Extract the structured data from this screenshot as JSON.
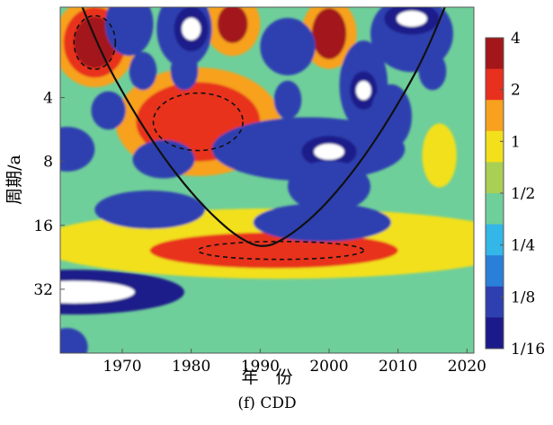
{
  "chart_data": {
    "type": "heatmap",
    "subtitle": "(f) CDD",
    "xlabel": "年　份",
    "ylabel": "周期/a",
    "xlim": [
      1961,
      2021
    ],
    "ylim": [
      1.5,
      64
    ],
    "y_scale": "log2",
    "y_reversed": true,
    "x_ticks": [
      {
        "value": 1970,
        "label": "1970"
      },
      {
        "value": 1980,
        "label": "1980"
      },
      {
        "value": 1990,
        "label": "1990"
      },
      {
        "value": 2000,
        "label": "2000"
      },
      {
        "value": 2010,
        "label": "2010"
      },
      {
        "value": 2020,
        "label": "2020"
      }
    ],
    "y_ticks": [
      {
        "value": 4,
        "label": "4"
      },
      {
        "value": 8,
        "label": "8"
      },
      {
        "value": 16,
        "label": "16"
      },
      {
        "value": 32,
        "label": "32"
      }
    ],
    "colorbar": {
      "scale": "log2",
      "range": [
        0.0625,
        4
      ],
      "ticks": [
        {
          "value": 4,
          "label": "4"
        },
        {
          "value": 2,
          "label": "2"
        },
        {
          "value": 1,
          "label": "1"
        },
        {
          "value": 0.5,
          "label": "1/2"
        },
        {
          "value": 0.25,
          "label": "1/4"
        },
        {
          "value": 0.125,
          "label": "1/8"
        },
        {
          "value": 0.0625,
          "label": "1/16"
        }
      ],
      "colors": [
        "#1c1a8a",
        "#2e3fb0",
        "#2a7fd8",
        "#33b6e8",
        "#6fcf9a",
        "#a9cf55",
        "#f2e01c",
        "#f7a11e",
        "#e8301e",
        "#a3161a"
      ]
    },
    "background_level": 0.4,
    "features": [
      {
        "x": 1966,
        "y": 2.2,
        "rx": 6,
        "ry": 0.7,
        "level": 1.5
      },
      {
        "x": 1966,
        "y": 2.2,
        "rx": 4.5,
        "ry": 0.55,
        "level": 2.6
      },
      {
        "x": 1966,
        "y": 2.2,
        "rx": 3,
        "ry": 0.4,
        "level": 4
      },
      {
        "x": 1986,
        "y": 1.8,
        "rx": 4,
        "ry": 0.5,
        "level": 1.5
      },
      {
        "x": 1986,
        "y": 1.8,
        "rx": 2.2,
        "ry": 0.3,
        "level": 3
      },
      {
        "x": 2000,
        "y": 2.0,
        "rx": 4,
        "ry": 0.55,
        "level": 1.5
      },
      {
        "x": 2000,
        "y": 2.0,
        "rx": 2.5,
        "ry": 0.4,
        "level": 3
      },
      {
        "x": 1981,
        "y": 5.2,
        "rx": 12,
        "ry": 0.85,
        "level": 1.2
      },
      {
        "x": 1981,
        "y": 5.2,
        "rx": 9,
        "ry": 0.62,
        "level": 2.6
      },
      {
        "x": 2016,
        "y": 7.5,
        "rx": 2.5,
        "ry": 0.5,
        "level": 1.1
      },
      {
        "x": 1993,
        "y": 19.5,
        "rx": 36,
        "ry": 0.55,
        "level": 1.1
      },
      {
        "x": 1992,
        "y": 21,
        "rx": 18,
        "ry": 0.28,
        "level": 2.4
      },
      {
        "x": 1971,
        "y": 1.8,
        "rx": 3.5,
        "ry": 0.5,
        "level": 0.12
      },
      {
        "x": 1979,
        "y": 1.9,
        "rx": 4,
        "ry": 0.6,
        "level": 0.1
      },
      {
        "x": 1980,
        "y": 1.9,
        "rx": 2.5,
        "ry": 0.35,
        "level": 0.0625
      },
      {
        "x": 1994,
        "y": 2.3,
        "rx": 4,
        "ry": 0.45,
        "level": 0.1
      },
      {
        "x": 2012,
        "y": 2.0,
        "rx": 6,
        "ry": 0.6,
        "level": 0.12
      },
      {
        "x": 2012,
        "y": 1.7,
        "rx": 4,
        "ry": 0.25,
        "level": 0.0625
      },
      {
        "x": 1973,
        "y": 3.0,
        "rx": 2,
        "ry": 0.3,
        "level": 0.1
      },
      {
        "x": 1979,
        "y": 3.0,
        "rx": 2,
        "ry": 0.3,
        "level": 0.1
      },
      {
        "x": 2005,
        "y": 3.5,
        "rx": 3.5,
        "ry": 0.7,
        "level": 0.1
      },
      {
        "x": 2005,
        "y": 3.7,
        "rx": 2,
        "ry": 0.3,
        "level": 0.0625
      },
      {
        "x": 2015,
        "y": 3.0,
        "rx": 2,
        "ry": 0.3,
        "level": 0.1
      },
      {
        "x": 1968,
        "y": 4.6,
        "rx": 2.5,
        "ry": 0.3,
        "level": 0.1
      },
      {
        "x": 1994,
        "y": 4.1,
        "rx": 2,
        "ry": 0.3,
        "level": 0.1
      },
      {
        "x": 2009,
        "y": 4.9,
        "rx": 3,
        "ry": 0.5,
        "level": 0.1
      },
      {
        "x": 1997,
        "y": 7.0,
        "rx": 14,
        "ry": 0.5,
        "level": 0.12
      },
      {
        "x": 2000,
        "y": 7.2,
        "rx": 4,
        "ry": 0.25,
        "level": 0.0625
      },
      {
        "x": 1962,
        "y": 7.0,
        "rx": 4,
        "ry": 0.35,
        "level": 0.12
      },
      {
        "x": 1976,
        "y": 7.8,
        "rx": 4.5,
        "ry": 0.3,
        "level": 0.1
      },
      {
        "x": 2000,
        "y": 10.5,
        "rx": 6,
        "ry": 0.4,
        "level": 0.1
      },
      {
        "x": 1974,
        "y": 13.5,
        "rx": 8,
        "ry": 0.3,
        "level": 0.1
      },
      {
        "x": 1999,
        "y": 15.5,
        "rx": 10,
        "ry": 0.3,
        "level": 0.1
      },
      {
        "x": 1963,
        "y": 33,
        "rx": 16,
        "ry": 0.35,
        "level": 0.0625
      },
      {
        "x": 1962,
        "y": 60,
        "rx": 3,
        "ry": 0.3,
        "level": 0.1
      }
    ],
    "coi_curve": [
      {
        "x": 1963,
        "y": 1.2
      },
      {
        "x": 1967,
        "y": 2.5
      },
      {
        "x": 1971,
        "y": 4.3
      },
      {
        "x": 1975,
        "y": 6.9
      },
      {
        "x": 1979,
        "y": 10.3
      },
      {
        "x": 1983,
        "y": 14.3
      },
      {
        "x": 1987,
        "y": 18.5
      },
      {
        "x": 1990.5,
        "y": 20.6
      },
      {
        "x": 1994,
        "y": 18.2
      },
      {
        "x": 1998,
        "y": 14.3
      },
      {
        "x": 2002,
        "y": 10.3
      },
      {
        "x": 2006,
        "y": 6.9
      },
      {
        "x": 2010,
        "y": 4.3
      },
      {
        "x": 2014,
        "y": 2.5
      },
      {
        "x": 2018,
        "y": 1.2
      }
    ],
    "significance_contours": [
      {
        "x": 1966,
        "y": 2.2,
        "rx": 3,
        "ry": 0.42
      },
      {
        "x": 1981,
        "y": 5.2,
        "rx": 6.5,
        "ry": 0.45
      },
      {
        "x": 1993,
        "y": 21,
        "rx": 12,
        "ry": 0.14
      }
    ]
  }
}
